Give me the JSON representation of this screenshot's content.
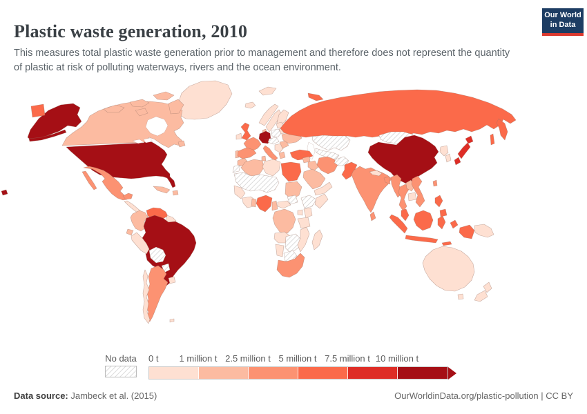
{
  "header": {
    "title": "Plastic waste generation, 2010",
    "subtitle": "This measures total plastic waste generation prior to management and therefore does not represent the quantity of plastic at risk of polluting waterways, rivers and the ocean environment.",
    "logo": {
      "line1": "Our World",
      "line2": "in Data",
      "bg": "#1d3d63",
      "accent": "#dc3a2f"
    }
  },
  "footer": {
    "source_label": "Data source:",
    "source_text": " Jambeck et al. (2015)",
    "right_text": "OurWorldinData.org/plastic-pollution | CC BY"
  },
  "chart_data": {
    "type": "heatmap",
    "subtype": "world-choropleth-map",
    "title": "Plastic waste generation, 2010",
    "unit": "tonnes of plastic waste per year",
    "legend": {
      "no_data_label": "No data",
      "tick_labels": [
        "0 t",
        "1 million t",
        "2.5 million t",
        "5 million t",
        "7.5 million t",
        "10 million t"
      ],
      "bin_colors": [
        "#fee0d2",
        "#fcbba1",
        "#fc9272",
        "#fb6a4a",
        "#de2d26",
        "#a50f15"
      ],
      "hatch_color": "#cfcfcf"
    },
    "bins": {
      "b1": "0 t to 1 million t",
      "b2": "1 million t to 2.5 million t",
      "b3": "2.5 million t to 5 million t",
      "b4": "5 million t to 7.5 million t",
      "b5": "7.5 million t to 10 million t",
      "b6": "10 million t and over",
      "no_data": "No data"
    },
    "country_bins": {
      "united-states": "b6",
      "china": "b6",
      "brazil": "b6",
      "germany": "b6",
      "japan": "b5",
      "russia": "b4",
      "united-kingdom": "b4",
      "turkey": "b4",
      "egypt": "b4",
      "nigeria": "b4",
      "pakistan": "b4",
      "venezuela": "b4",
      "indonesia": "b4",
      "malaysia": "b4",
      "philippines": "b4",
      "france": "b3",
      "spain": "b3",
      "italy": "b3",
      "mexico": "b3",
      "india": "b3",
      "argentina": "b3",
      "thailand": "b3",
      "vietnam": "b3",
      "myanmar": "b3",
      "south-africa": "b3",
      "iran": "b3",
      "sri-lanka": "b3",
      "bangladesh": "b3",
      "taiwan": "b3",
      "canada": "b2",
      "ukraine": "b2",
      "romania": "b2",
      "greece": "b2",
      "portugal": "b2",
      "denmark": "b2",
      "colombia": "b2",
      "ecuador": "b2",
      "cuba": "b2",
      "hispaniola": "b2",
      "morocco": "b2",
      "algeria": "b2",
      "tunisia": "b2",
      "sudan": "b2",
      "cameroon": "b2",
      "dr-congo": "b2",
      "ghana": "b2",
      "iraq": "b2",
      "syria": "b2",
      "saudi-arabia": "b2",
      "laos": "b2",
      "greenland": "b1",
      "iceland": "b1",
      "ireland": "b1",
      "norway": "b1",
      "sweden": "b1",
      "finland": "b1",
      "baltic-states": "b1",
      "belarus": "b1",
      "balkans": "b1",
      "svalbard": "b1",
      "chile": "b1",
      "peru": "b1",
      "uruguay": "b1",
      "guyanas": "b1",
      "falkland-islands": "b1",
      "central-america": "b1",
      "libya": "b1",
      "senegal-guinea": "b1",
      "ivory-coast": "b1",
      "central-african-republic": "b1",
      "kenya": "b1",
      "uganda": "b1",
      "tanzania": "b1",
      "angola": "b1",
      "namibia": "b1",
      "mozambique": "b1",
      "madagascar": "b1",
      "somalia": "b1",
      "yemen-oman": "b1",
      "nepal": "b1",
      "north-korea": "b1",
      "south-korea": "b1",
      "cambodia": "b1",
      "papua-new-guinea": "b1",
      "australia": "b1",
      "tasmania": "b1",
      "new-zealand": "b1",
      "kazakhstan": "no_data",
      "mongolia": "no_data",
      "central-asia": "no_data",
      "afghanistan": "no_data",
      "bolivia": "no_data",
      "paraguay": "no_data",
      "western-sahara": "no_data",
      "sahel-belt": "no_data",
      "south-sudan": "no_data",
      "ethiopia": "no_data",
      "zambia-zimbabwe": "no_data",
      "botswana": "no_data",
      "poland": "no_data",
      "austria-czechia": "no_data"
    }
  }
}
